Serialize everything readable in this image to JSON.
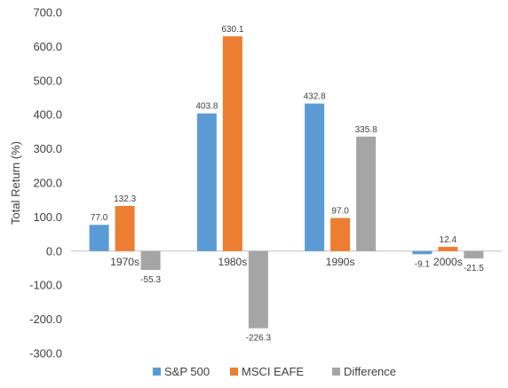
{
  "chart_data": {
    "type": "bar",
    "title": "",
    "xlabel": "",
    "ylabel": "Total Return (%)",
    "ylim": [
      -300,
      700
    ],
    "yticks": [
      "700.0",
      "600.0",
      "500.0",
      "400.0",
      "300.0",
      "200.0",
      "100.0",
      "0.0",
      "-100.0",
      "-200.0",
      "-300.0"
    ],
    "categories": [
      "1970s",
      "1980s",
      "1990s",
      "2000s"
    ],
    "series": [
      {
        "name": "S&P 500",
        "values": [
          77.0,
          403.8,
          432.8,
          -9.1
        ],
        "labels": [
          "77.0",
          "403.8",
          "432.8",
          "-9.1"
        ],
        "color": "#5B9BD5"
      },
      {
        "name": "MSCI EAFE",
        "values": [
          132.3,
          630.1,
          97.0,
          12.4
        ],
        "labels": [
          "132.3",
          "630.1",
          "97.0",
          "12.4"
        ],
        "color": "#ED7D31"
      },
      {
        "name": "Difference",
        "values": [
          -55.3,
          -226.3,
          335.8,
          -21.5
        ],
        "labels": [
          "-55.3",
          "-226.3",
          "335.8",
          "-21.5"
        ],
        "color": "#A5A5A5"
      }
    ],
    "grid": false,
    "legend_position": "bottom"
  }
}
